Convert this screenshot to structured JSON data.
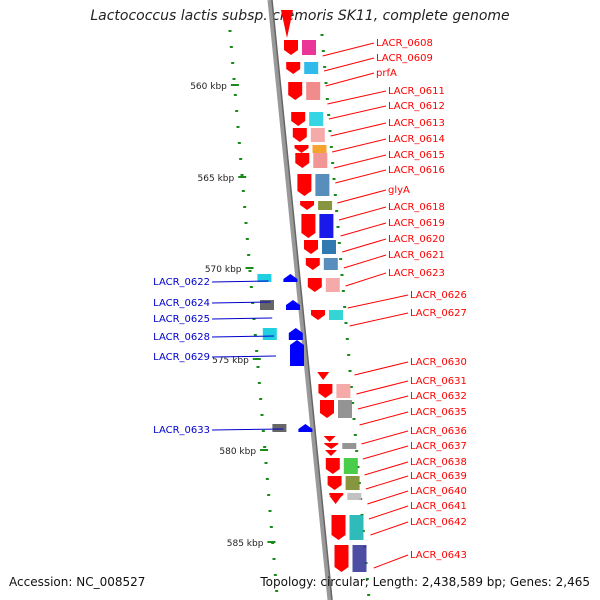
{
  "title": "Lactococcus lactis subsp. cremoris SK11, complete genome",
  "accession": "Accession: NC_008527",
  "topology": "Topology: circular; Length: 2,438,589 bp; Genes: 2,465",
  "colors": {
    "forward_gene": "#ff0000",
    "reverse_gene": "#0000ff",
    "forward_label": "#ff0000",
    "reverse_label": "#0000cc",
    "backbone": "#888888",
    "tick": "#1a8a1a"
  },
  "scale_marks": [
    "560 kbp",
    "565 kbp",
    "570 kbp",
    "575 kbp",
    "580 kbp",
    "585 kbp"
  ],
  "forward_labels": [
    "LACR_0608",
    "LACR_0609",
    "prfA",
    "LACR_0611",
    "LACR_0612",
    "LACR_0613",
    "LACR_0614",
    "LACR_0615",
    "LACR_0616",
    "glyA",
    "LACR_0618",
    "LACR_0619",
    "LACR_0620",
    "LACR_0621",
    "LACR_0623",
    "LACR_0626",
    "LACR_0627",
    "LACR_0630",
    "LACR_0631",
    "LACR_0632",
    "LACR_0635",
    "LACR_0636",
    "LACR_0637",
    "LACR_0638",
    "LACR_0639",
    "LACR_0640",
    "LACR_0641",
    "LACR_0642",
    "LACR_0643"
  ],
  "reverse_labels": [
    "LACR_0622",
    "LACR_0624",
    "LACR_0625",
    "LACR_0628",
    "LACR_0629",
    "LACR_0633"
  ]
}
